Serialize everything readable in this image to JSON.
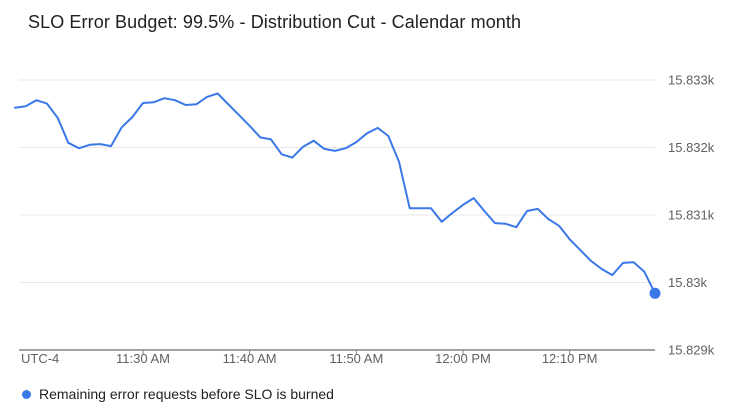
{
  "title": "SLO Error Budget: 99.5% - Distribution Cut - Calendar month",
  "legend": {
    "label": "Remaining error requests before SLO is burned"
  },
  "colors": {
    "series": "#3b78e7",
    "gridline": "#e8e8e8",
    "axis_line": "#80868b",
    "axis_text": "#616161",
    "title_text": "#212121"
  },
  "chart_data": {
    "type": "line",
    "title": "SLO Error Budget: 99.5% - Distribution Cut - Calendar month",
    "xlabel": "",
    "ylabel": "",
    "x_timezone": "UTC-4",
    "grid": "horizontal",
    "legend_position": "bottom-left",
    "last_point_marker": true,
    "ylim": [
      15829,
      15833
    ],
    "y_ticks": [
      {
        "label": "15.833k",
        "value": 15833
      },
      {
        "label": "15.832k",
        "value": 15832
      },
      {
        "label": "15.831k",
        "value": 15831
      },
      {
        "label": "15.83k",
        "value": 15830
      },
      {
        "label": "15.829k",
        "value": 15829
      }
    ],
    "x_ticks": [
      {
        "label": "11:30 AM",
        "minute": 12
      },
      {
        "label": "11:40 AM",
        "minute": 22
      },
      {
        "label": "11:50 AM",
        "minute": 32
      },
      {
        "label": "12:00 PM",
        "minute": 42
      },
      {
        "label": "12:10 PM",
        "minute": 52
      }
    ],
    "series": [
      {
        "name": "Remaining error requests before SLO is burned",
        "color": "#3b78e7",
        "start_time": "11:18 AM",
        "end_time": "12:18 PM",
        "interval_minutes": 1,
        "values": [
          15832.59,
          15832.61,
          15832.7,
          15832.65,
          15832.44,
          15832.07,
          15831.99,
          15832.04,
          15832.05,
          15832.02,
          15832.3,
          15832.45,
          15832.66,
          15832.67,
          15832.73,
          15832.7,
          15832.63,
          15832.64,
          15832.75,
          15832.8,
          15832.64,
          15832.48,
          15832.32,
          15832.15,
          15832.12,
          15831.9,
          15831.85,
          15832.01,
          15832.1,
          15831.98,
          15831.95,
          15831.99,
          15832.08,
          15832.21,
          15832.29,
          15832.17,
          15831.79,
          15831.1,
          15831.1,
          15831.1,
          15830.9,
          15831.03,
          15831.15,
          15831.25,
          15831.06,
          15830.88,
          15830.87,
          15830.82,
          15831.06,
          15831.09,
          15830.94,
          15830.84,
          15830.64,
          15830.48,
          15830.32,
          15830.2,
          15830.11,
          15830.29,
          15830.3,
          15830.16,
          15829.84
        ]
      }
    ]
  }
}
